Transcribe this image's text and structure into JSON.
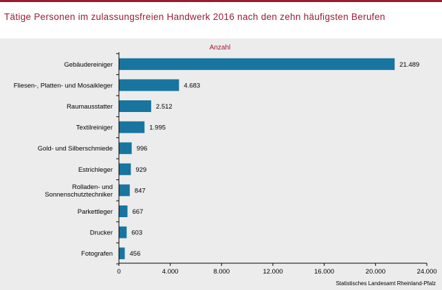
{
  "title": "Tätige Personen im zulassungsfreien Handwerk 2016 nach den zehn häufigsten Berufen",
  "source": "Statistisches Landesamt Rheinland-Pfalz",
  "colors": {
    "bar": "#17759f",
    "title": "#9b1b30",
    "background": "#ececec"
  },
  "chart_data": {
    "type": "bar",
    "orientation": "horizontal",
    "unit_label": "Anzahl",
    "categories": [
      [
        "Gebäudereiniger"
      ],
      [
        "Fliesen-, Platten- und Mosaikleger"
      ],
      [
        "Raumausstatter"
      ],
      [
        "Textilreiniger"
      ],
      [
        "Gold- und Silberschmiede"
      ],
      [
        "Estrichleger"
      ],
      [
        "Rolladen- und",
        "Sonnenschutztechniker"
      ],
      [
        "Parkettleger"
      ],
      [
        "Drucker"
      ],
      [
        "Fotografen"
      ]
    ],
    "values": [
      21489,
      4683,
      2512,
      1995,
      996,
      929,
      847,
      667,
      603,
      456
    ],
    "value_labels": [
      "21.489",
      "4.683",
      "2.512",
      "1.995",
      "996",
      "929",
      "847",
      "667",
      "603",
      "456"
    ],
    "xlim": [
      0,
      24000
    ],
    "xticks": [
      0,
      4000,
      8000,
      12000,
      16000,
      20000,
      24000
    ],
    "xtick_labels": [
      "0",
      "4.000",
      "8.000",
      "12.000",
      "16.000",
      "20.000",
      "24.000"
    ],
    "grid": false
  }
}
